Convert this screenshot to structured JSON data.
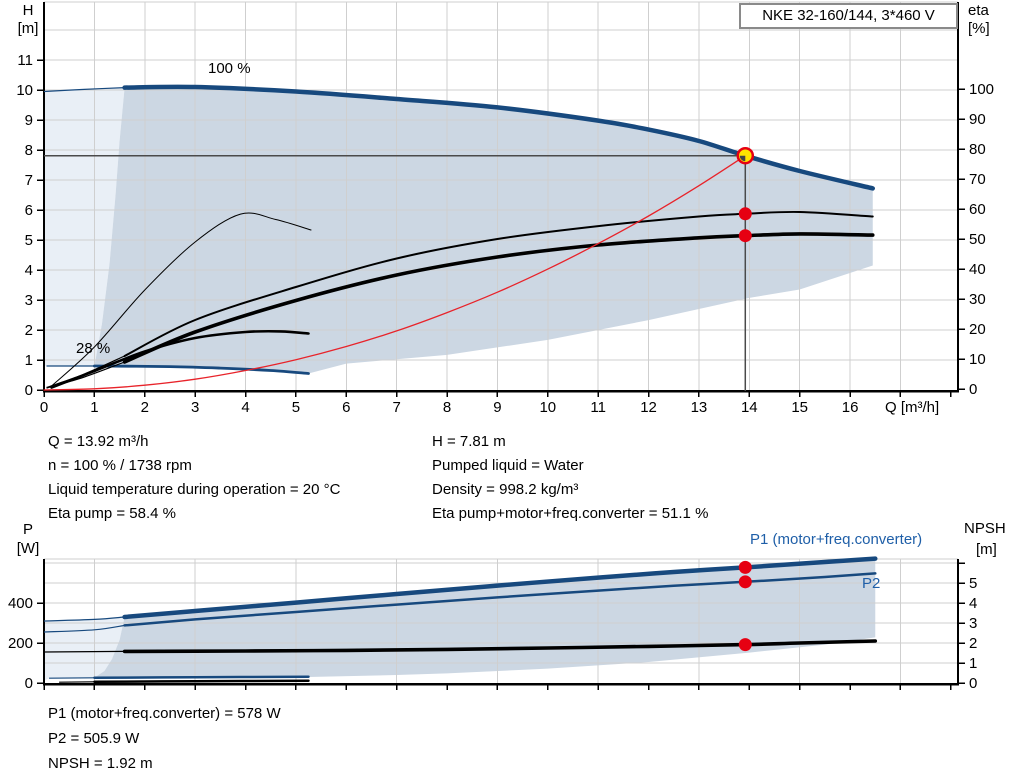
{
  "title_box": "NKE 32-160/144, 3*460 V",
  "colors": {
    "curve_blue": "#17497e",
    "label_blue": "#1f5fa8",
    "red": "#e8232a",
    "dot_red": "#e60012",
    "dot_yellow": "#ffe400",
    "envelope_main": "#ccd7e3",
    "envelope_light": "#e9eff6",
    "grid": "#cfcfcf",
    "duty_line": "#4a4a4a",
    "black": "#000000"
  },
  "info_top_left": [
    "Q = 13.92 m³/h",
    "n = 100 % / 1738 rpm",
    "Liquid temperature during operation = 20 °C",
    "Eta pump = 58.4 %"
  ],
  "info_top_right": [
    "H = 7.81 m",
    "Pumped liquid = Water",
    "Density = 998.2 kg/m³",
    "Eta pump+motor+freq.converter = 51.1 %"
  ],
  "info_bottom": [
    "P1 (motor+freq.converter) = 578 W",
    "P2 = 505.9 W",
    "NPSH = 1.92 m"
  ],
  "chart_data": [
    {
      "type": "line",
      "title": "NKE 32-160/144, 3*460 V",
      "q_axis": {
        "label": "Q [m³/h]",
        "ticks": [
          0,
          1,
          2,
          3,
          4,
          5,
          6,
          7,
          8,
          9,
          10,
          11,
          12,
          13,
          14,
          15,
          16
        ],
        "tick_max": 18,
        "range": [
          0,
          18.14
        ],
        "grid_step": 1
      },
      "h_axis": {
        "label": "H",
        "unit": "[m]",
        "ticks": [
          0,
          1,
          2,
          3,
          4,
          5,
          6,
          7,
          8,
          9,
          10,
          11
        ],
        "grid_ticks": [
          1,
          2,
          3,
          4,
          5,
          6,
          7,
          8,
          9,
          10,
          11,
          12
        ],
        "range": [
          0,
          12.97
        ]
      },
      "eta_axis": {
        "label": "eta",
        "unit": "[%]",
        "ticks": [
          0,
          10,
          20,
          30,
          40,
          50,
          60,
          70,
          80,
          90,
          100
        ],
        "range": [
          0,
          129
        ]
      },
      "curve_labels": {
        "speed_100": "100 %",
        "speed_28": "28 %"
      },
      "duty_point": {
        "q": 13.92,
        "h": 7.81,
        "eta_pump": 58.4,
        "eta_total": 51.1,
        "speed_pct": 100,
        "rpm": 1738
      },
      "series": [
        {
          "name": "head-100pct-curve",
          "axis": "h",
          "color": "curve_blue",
          "width": 4.5,
          "thin_lead": [
            [
              0,
              9.95
            ],
            [
              0.8,
              10.02
            ],
            [
              1.6,
              10.08
            ]
          ],
          "points": [
            [
              1.6,
              10.08
            ],
            [
              3,
              10.1
            ],
            [
              5,
              9.95
            ],
            [
              7,
              9.7
            ],
            [
              9,
              9.42
            ],
            [
              11,
              8.98
            ],
            [
              12,
              8.68
            ],
            [
              13,
              8.3
            ],
            [
              13.92,
              7.81
            ],
            [
              15,
              7.3
            ],
            [
              16.45,
              6.72
            ]
          ]
        },
        {
          "name": "head-28pct-curve",
          "axis": "h",
          "color": "curve_blue",
          "width": 2.8,
          "thin_lead": [
            [
              0.05,
              0.8
            ],
            [
              1,
              0.8
            ]
          ],
          "points": [
            [
              1,
              0.8
            ],
            [
              2.5,
              0.78
            ],
            [
              3.5,
              0.73
            ],
            [
              4.5,
              0.65
            ],
            [
              5.25,
              0.55
            ]
          ]
        },
        {
          "name": "eta-pump-curve",
          "axis": "eta",
          "color": "black",
          "width": 2,
          "thin_lead": [
            [
              0.05,
              0.5
            ],
            [
              0.8,
              5
            ],
            [
              1.6,
              11
            ]
          ],
          "points": [
            [
              1.6,
              11
            ],
            [
              3,
              23
            ],
            [
              5,
              34
            ],
            [
              7,
              43.5
            ],
            [
              9,
              50
            ],
            [
              11,
              54.3
            ],
            [
              13,
              57.5
            ],
            [
              13.92,
              58.4
            ],
            [
              15,
              59
            ],
            [
              16.45,
              57.5
            ]
          ]
        },
        {
          "name": "eta-total-curve",
          "axis": "eta",
          "color": "black",
          "width": 3.6,
          "thin_lead": [
            [
              0.05,
              0.3
            ],
            [
              0.8,
              4
            ],
            [
              1.6,
              9
            ]
          ],
          "points": [
            [
              1.6,
              9
            ],
            [
              3,
              19
            ],
            [
              5,
              29.5
            ],
            [
              7,
              38
            ],
            [
              9,
              44
            ],
            [
              11,
              48
            ],
            [
              13,
              50.4
            ],
            [
              13.92,
              51.1
            ],
            [
              15,
              51.7
            ],
            [
              16.45,
              51.3
            ]
          ]
        },
        {
          "name": "eta-pump-min-speed-curve",
          "axis": "eta",
          "color": "black",
          "width": 1,
          "points": [
            [
              0.15,
              1
            ],
            [
              1,
              14
            ],
            [
              2,
              33
            ],
            [
              3,
              49
            ],
            [
              3.9,
              58.3
            ],
            [
              4.6,
              56.5
            ],
            [
              5.3,
              53
            ]
          ]
        },
        {
          "name": "eta-total-min-speed-curve",
          "axis": "eta",
          "color": "black",
          "width": 2.6,
          "points": [
            [
              0.15,
              0.5
            ],
            [
              1,
              6
            ],
            [
              2,
              12.5
            ],
            [
              3,
              17
            ],
            [
              4,
              19
            ],
            [
              4.7,
              19.2
            ],
            [
              5.25,
              18.5
            ]
          ]
        },
        {
          "name": "system-curve",
          "axis": "h",
          "color": "red",
          "width": 1.3,
          "points": [
            [
              0,
              0
            ],
            [
              1,
              0.04
            ],
            [
              2,
              0.16
            ],
            [
              3,
              0.36
            ],
            [
              4,
              0.65
            ],
            [
              5,
              1.01
            ],
            [
              6,
              1.45
            ],
            [
              7,
              1.97
            ],
            [
              8,
              2.58
            ],
            [
              9,
              3.26
            ],
            [
              10,
              4.03
            ],
            [
              11,
              4.88
            ],
            [
              12,
              5.8
            ],
            [
              13,
              6.81
            ],
            [
              13.92,
              7.81
            ]
          ]
        }
      ],
      "envelope_main": [
        [
          1,
          0.8
        ],
        [
          1.15,
          2.2
        ],
        [
          1.3,
          4.2
        ],
        [
          1.42,
          6.5
        ],
        [
          1.5,
          8.3
        ],
        [
          1.6,
          10.08
        ],
        [
          3,
          10.1
        ],
        [
          5,
          9.95
        ],
        [
          7,
          9.7
        ],
        [
          9,
          9.42
        ],
        [
          11,
          8.98
        ],
        [
          12,
          8.68
        ],
        [
          13,
          8.3
        ],
        [
          13.92,
          7.81
        ],
        [
          15,
          7.3
        ],
        [
          16.45,
          6.72
        ],
        [
          16.45,
          4.15
        ],
        [
          15,
          3.35
        ],
        [
          14,
          3.07
        ],
        [
          12,
          2.33
        ],
        [
          10,
          1.67
        ],
        [
          8,
          1.17
        ],
        [
          6,
          0.88
        ],
        [
          5.25,
          0.55
        ],
        [
          4.5,
          0.65
        ],
        [
          3.5,
          0.73
        ],
        [
          2.5,
          0.78
        ],
        [
          1,
          0.8
        ]
      ],
      "envelope_light": [
        [
          0,
          0.8
        ],
        [
          0,
          9.95
        ],
        [
          0.8,
          10.02
        ],
        [
          1.6,
          10.08
        ],
        [
          1.5,
          8.3
        ],
        [
          1.42,
          6.5
        ],
        [
          1.3,
          4.2
        ],
        [
          1.15,
          2.2
        ],
        [
          1,
          0.8
        ]
      ],
      "duty_markers": {
        "yellow": {
          "q": 13.92,
          "h": 7.81
        },
        "red": [
          {
            "q": 13.92,
            "eta": 58.4
          },
          {
            "q": 13.92,
            "eta": 51.1
          }
        ]
      }
    },
    {
      "type": "line",
      "q_axis": {
        "tick_max": 18,
        "grid_step": 2,
        "grid_start": 1
      },
      "p_axis": {
        "label": "P",
        "unit": "[W]",
        "ticks": [
          0,
          200,
          400
        ],
        "range": [
          0,
          620
        ]
      },
      "npsh_axis": {
        "label": "NPSH",
        "unit": "[m]",
        "ticks": [
          0,
          1,
          2,
          3,
          4,
          5
        ],
        "tick_max": 6,
        "range": [
          0,
          6.2
        ]
      },
      "curve_labels": {
        "p1": "P1 (motor+freq.converter)",
        "p2": "P2"
      },
      "duty_point": {
        "q": 13.92,
        "p1": 578,
        "p2": 505.9,
        "npsh": 1.92
      },
      "series": [
        {
          "name": "p1-curve",
          "axis": "p",
          "color": "curve_blue",
          "width": 4.5,
          "thin_lead": [
            [
              0,
              310
            ],
            [
              1,
              318
            ],
            [
              1.6,
              330
            ]
          ],
          "points": [
            [
              1.6,
              330
            ],
            [
              3,
              360
            ],
            [
              5,
              402
            ],
            [
              7,
              445
            ],
            [
              9,
              487
            ],
            [
              11,
              527
            ],
            [
              12.5,
              555
            ],
            [
              13.92,
              578
            ],
            [
              15.5,
              605
            ],
            [
              16.5,
              622
            ]
          ]
        },
        {
          "name": "p2-curve",
          "axis": "p",
          "color": "curve_blue",
          "width": 2.5,
          "thin_lead": [
            [
              0,
              255
            ],
            [
              1,
              266
            ],
            [
              1.6,
              288
            ]
          ],
          "points": [
            [
              1.6,
              288
            ],
            [
              3,
              318
            ],
            [
              5,
              355
            ],
            [
              7,
              392
            ],
            [
              9,
              428
            ],
            [
              11,
              462
            ],
            [
              12.5,
              486
            ],
            [
              13.92,
              506
            ],
            [
              15.5,
              530
            ],
            [
              16.5,
              548
            ]
          ]
        },
        {
          "name": "npsh-curve",
          "axis": "npsh",
          "color": "black",
          "width": 3.6,
          "thin_lead": [
            [
              0,
              1.55
            ],
            [
              1.6,
              1.58
            ]
          ],
          "points": [
            [
              1.6,
              1.58
            ],
            [
              4,
              1.6
            ],
            [
              6,
              1.63
            ],
            [
              8,
              1.68
            ],
            [
              10,
              1.75
            ],
            [
              12,
              1.83
            ],
            [
              13.92,
              1.92
            ],
            [
              15,
              2.0
            ],
            [
              16.5,
              2.1
            ]
          ]
        },
        {
          "name": "p1-min-speed-curve",
          "axis": "p",
          "color": "curve_blue",
          "width": 2.5,
          "thin_lead": [
            [
              0.1,
              24
            ],
            [
              1,
              26
            ]
          ],
          "points": [
            [
              1,
              26
            ],
            [
              3,
              29
            ],
            [
              5.25,
              31
            ]
          ]
        },
        {
          "name": "p2-min-speed-curve",
          "axis": "p",
          "color": "black",
          "width": 2.5,
          "thin_lead": [
            [
              0.3,
              4
            ],
            [
              1,
              6
            ]
          ],
          "points": [
            [
              1,
              6
            ],
            [
              3,
              9
            ],
            [
              5.25,
              11
            ]
          ]
        }
      ],
      "envelope_main": [
        [
          1,
          27
        ],
        [
          1.2,
          60
        ],
        [
          1.35,
          120
        ],
        [
          1.5,
          215
        ],
        [
          1.6,
          330
        ],
        [
          3,
          360
        ],
        [
          5,
          402
        ],
        [
          7,
          445
        ],
        [
          9,
          487
        ],
        [
          11,
          527
        ],
        [
          12.5,
          555
        ],
        [
          13.92,
          578
        ],
        [
          15.5,
          605
        ],
        [
          16.5,
          622
        ],
        [
          16.5,
          228
        ],
        [
          15.5,
          192
        ],
        [
          14,
          152
        ],
        [
          12,
          105
        ],
        [
          10,
          72
        ],
        [
          8,
          48
        ],
        [
          7,
          40
        ],
        [
          5.25,
          30
        ],
        [
          3,
          29
        ],
        [
          1,
          26
        ]
      ],
      "envelope_light": [
        [
          0,
          12
        ],
        [
          0,
          310
        ],
        [
          1,
          318
        ],
        [
          1.6,
          330
        ],
        [
          1.5,
          215
        ],
        [
          1.35,
          120
        ],
        [
          1.2,
          60
        ],
        [
          1,
          27
        ],
        [
          0.5,
          24
        ],
        [
          0.1,
          24
        ],
        [
          0,
          12
        ]
      ],
      "duty_markers": {
        "red": [
          {
            "q": 13.92,
            "p": 578
          },
          {
            "q": 13.92,
            "p": 505.9
          },
          {
            "q": 13.92,
            "npsh": 1.92
          }
        ]
      }
    }
  ]
}
